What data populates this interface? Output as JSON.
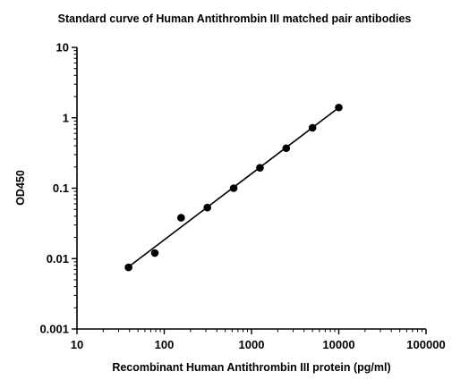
{
  "chart_data": {
    "type": "scatter",
    "title": "Standard curve of Human Antithrombin III matched pair antibodies",
    "xlabel": "Recombinant Human Antithrombin III protein (pg/ml)",
    "ylabel": "OD450",
    "x_scale": "log",
    "y_scale": "log",
    "xlim": [
      10,
      100000
    ],
    "ylim": [
      0.001,
      10
    ],
    "x_ticks": [
      10,
      100,
      1000,
      10000,
      100000
    ],
    "x_tick_labels": [
      "10",
      "100",
      "1000",
      "10000",
      "100000"
    ],
    "y_ticks": [
      0.001,
      0.01,
      0.1,
      1,
      10
    ],
    "y_tick_labels": [
      "0.001",
      "0.01",
      "0.1",
      "1",
      "10"
    ],
    "grid": false,
    "series": [
      {
        "x": [
          39,
          78,
          156,
          312,
          625,
          1250,
          2500,
          5000,
          10000
        ],
        "y": [
          0.0075,
          0.012,
          0.038,
          0.053,
          0.1,
          0.195,
          0.37,
          0.72,
          1.4
        ],
        "fit": "linear-log-log"
      }
    ]
  }
}
